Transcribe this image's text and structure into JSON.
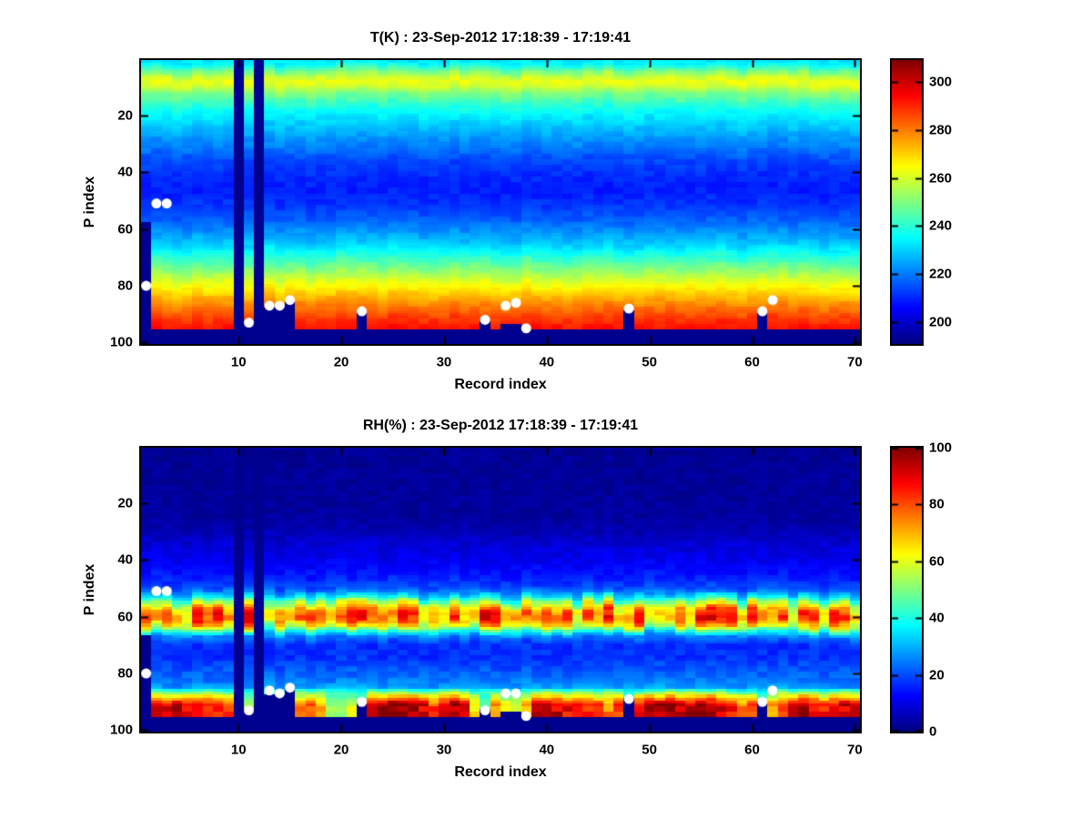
{
  "figure": {
    "background": "#ffffff",
    "colors": {
      "masked": "#00008f",
      "marker": "#ffffff",
      "axis": "#000000",
      "text": "#000000"
    }
  },
  "chart_data": [
    {
      "id": "temperature",
      "type": "heatmap",
      "title": "T(K) : 23-Sep-2012 17:18:39 - 17:19:41",
      "xlabel": "Record index",
      "ylabel": "P index",
      "x_range": [
        1,
        70
      ],
      "y_range": [
        1,
        100
      ],
      "y_axis_reversed": true,
      "x_ticks": [
        10,
        20,
        30,
        40,
        50,
        60,
        70
      ],
      "y_ticks": [
        20,
        40,
        60,
        80,
        100
      ],
      "colormap": "jet",
      "grid": false,
      "colorbar": {
        "min": 191,
        "max": 309,
        "ticks": [
          200,
          220,
          240,
          260,
          280,
          300
        ]
      },
      "profile_p": [
        1,
        2,
        4,
        6,
        8,
        10,
        12,
        15,
        18,
        22,
        26,
        31,
        36,
        42,
        47,
        52,
        57,
        62,
        66,
        70,
        73,
        76,
        79,
        82,
        85,
        88,
        91,
        94,
        97,
        100
      ],
      "profile_value": [
        233,
        235,
        245,
        257,
        263,
        259,
        251,
        243,
        237,
        231,
        226,
        220,
        214,
        210,
        209,
        212,
        217,
        224,
        231,
        240,
        248,
        255,
        262,
        269,
        275,
        281,
        287,
        291,
        294,
        295
      ],
      "masked_full_columns": [
        10,
        12
      ],
      "masked_below": [
        {
          "record": 1,
          "p": 58
        },
        {
          "record": 11,
          "p": 93
        },
        {
          "record": 13,
          "p": 88
        },
        {
          "record": 14,
          "p": 88
        },
        {
          "record": 15,
          "p": 86
        },
        {
          "record": 22,
          "p": 90
        },
        {
          "record": 34,
          "p": 93
        },
        {
          "record": 36,
          "p": 94
        },
        {
          "record": 37,
          "p": 94
        },
        {
          "record": 48,
          "p": 89
        },
        {
          "record": 61,
          "p": 90
        }
      ],
      "masked_bottom_p": 96,
      "markers": [
        [
          1,
          80
        ],
        [
          2,
          51
        ],
        [
          3,
          51
        ],
        [
          11,
          93
        ],
        [
          13,
          87
        ],
        [
          14,
          87
        ],
        [
          15,
          85
        ],
        [
          22,
          89
        ],
        [
          34,
          92
        ],
        [
          36,
          87
        ],
        [
          37,
          86
        ],
        [
          38,
          95
        ],
        [
          48,
          88
        ],
        [
          61,
          89
        ],
        [
          62,
          85
        ]
      ]
    },
    {
      "id": "humidity",
      "type": "heatmap",
      "title": "RH(%) : 23-Sep-2012 17:18:39 - 17:19:41",
      "xlabel": "Record index",
      "ylabel": "P index",
      "x_range": [
        1,
        70
      ],
      "y_range": [
        1,
        100
      ],
      "y_axis_reversed": true,
      "x_ticks": [
        10,
        20,
        30,
        40,
        50,
        60,
        70
      ],
      "y_ticks": [
        20,
        40,
        60,
        80,
        100
      ],
      "colormap": "jet",
      "grid": false,
      "colorbar": {
        "min": 0,
        "max": 100,
        "ticks": [
          0,
          20,
          40,
          60,
          80,
          100
        ]
      },
      "profile_p": [
        1,
        25,
        30,
        34,
        38,
        42,
        46,
        50,
        53,
        55,
        57,
        59,
        61,
        63,
        65,
        67,
        70,
        74,
        78,
        82,
        85,
        88,
        91,
        94,
        100
      ],
      "profile_value": [
        2,
        3,
        5,
        8,
        10,
        12,
        15,
        20,
        32,
        50,
        65,
        72,
        73,
        62,
        40,
        25,
        17,
        17,
        20,
        24,
        28,
        38,
        48,
        52,
        45
      ],
      "surface_rh": [
        0,
        88,
        92,
        95,
        90,
        85,
        88,
        82,
        80,
        0,
        55,
        0,
        55,
        55,
        55,
        75,
        78,
        72,
        55,
        50,
        60,
        45,
        95,
        98,
        97,
        96,
        95,
        90,
        80,
        95,
        97,
        92,
        65,
        50,
        75,
        60,
        55,
        70,
        90,
        95,
        92,
        88,
        90,
        85,
        80,
        75,
        80,
        45,
        85,
        95,
        98,
        96,
        92,
        95,
        98,
        96,
        90,
        85,
        75,
        80,
        50,
        70,
        85,
        92,
        95,
        90,
        85,
        88,
        92,
        90
      ],
      "masked_full_columns": [
        10,
        12
      ],
      "masked_below": [
        {
          "record": 1,
          "p": 67
        },
        {
          "record": 11,
          "p": 93
        },
        {
          "record": 13,
          "p": 88
        },
        {
          "record": 14,
          "p": 88
        },
        {
          "record": 15,
          "p": 86
        },
        {
          "record": 22,
          "p": 90
        },
        {
          "record": 34,
          "p": 93
        },
        {
          "record": 36,
          "p": 94
        },
        {
          "record": 37,
          "p": 94
        },
        {
          "record": 48,
          "p": 89
        },
        {
          "record": 61,
          "p": 90
        }
      ],
      "masked_bottom_p": 96,
      "markers": [
        [
          1,
          80
        ],
        [
          2,
          51
        ],
        [
          3,
          51
        ],
        [
          11,
          93
        ],
        [
          13,
          86
        ],
        [
          14,
          87
        ],
        [
          15,
          85
        ],
        [
          22,
          90
        ],
        [
          34,
          93
        ],
        [
          36,
          87
        ],
        [
          37,
          87
        ],
        [
          38,
          95
        ],
        [
          48,
          89
        ],
        [
          61,
          90
        ],
        [
          62,
          86
        ]
      ]
    }
  ]
}
